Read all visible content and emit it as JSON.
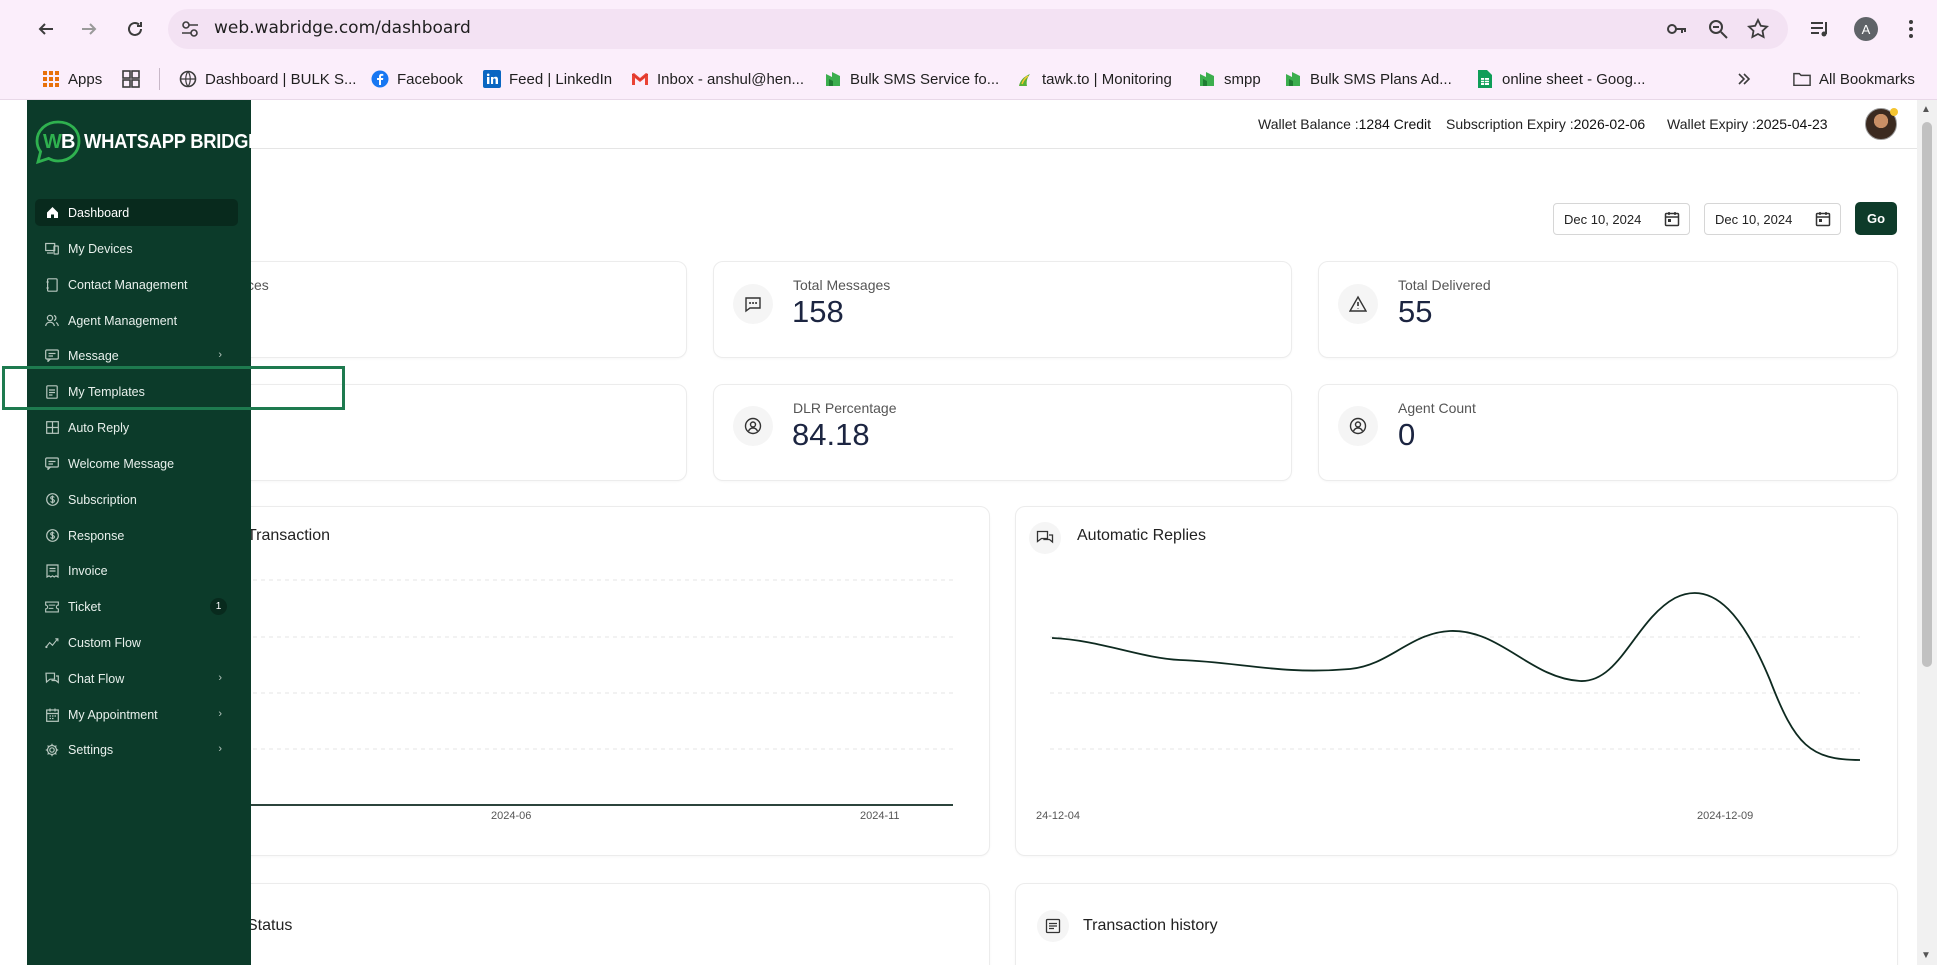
{
  "browser": {
    "url": "web.wabridge.com/dashboard",
    "profile_initial": "A",
    "bookmarks": [
      {
        "label": "Apps",
        "icon": "apps-grid-icon"
      },
      {
        "label": "Dashboard | BULK S...",
        "icon": "globe-icon"
      },
      {
        "label": "Facebook",
        "icon": "facebook-icon"
      },
      {
        "label": "Feed | LinkedIn",
        "icon": "linkedin-icon"
      },
      {
        "label": "Inbox - anshul@hen...",
        "icon": "gmail-icon"
      },
      {
        "label": "Bulk SMS Service fo...",
        "icon": "bulksms-icon"
      },
      {
        "label": "tawk.to | Monitoring",
        "icon": "tawkto-icon"
      },
      {
        "label": "smpp",
        "icon": "bulksms-icon"
      },
      {
        "label": "Bulk SMS Plans Ad...",
        "icon": "bulksms-icon"
      },
      {
        "label": "online sheet - Goog...",
        "icon": "sheets-icon"
      }
    ],
    "all_bookmarks": "All Bookmarks"
  },
  "sidebar": {
    "logo_text": "WHATSAPP BRIDGE",
    "items": [
      {
        "label": "Dashboard",
        "icon": "home-icon",
        "active": true
      },
      {
        "label": "My Devices",
        "icon": "devices-icon"
      },
      {
        "label": "Contact Management",
        "icon": "contact-book-icon"
      },
      {
        "label": "Agent Management",
        "icon": "users-icon"
      },
      {
        "label": "Message",
        "icon": "message-icon",
        "has_submenu": true
      },
      {
        "label": "My Templates",
        "icon": "template-icon"
      },
      {
        "label": "Auto Reply",
        "icon": "grid-icon"
      },
      {
        "label": "Welcome Message",
        "icon": "message-icon"
      },
      {
        "label": "Subscription",
        "icon": "dollar-icon"
      },
      {
        "label": "Response",
        "icon": "dollar-icon"
      },
      {
        "label": "Invoice",
        "icon": "invoice-icon"
      },
      {
        "label": "Ticket",
        "icon": "ticket-icon",
        "badge": "1"
      },
      {
        "label": "Custom Flow",
        "icon": "flow-icon"
      },
      {
        "label": "Chat Flow",
        "icon": "chat-icon",
        "has_submenu": true
      },
      {
        "label": "My Appointment",
        "icon": "calendar-icon",
        "has_submenu": true
      },
      {
        "label": "Settings",
        "icon": "gear-icon",
        "has_submenu": true
      }
    ]
  },
  "header": {
    "wallet_balance_label": "Wallet Balance :",
    "wallet_balance_value": "1284 Credit",
    "subscription_expiry_label": "Subscription Expiry :",
    "subscription_expiry_value": "2026-02-06",
    "wallet_expiry_label": "Wallet Expiry :",
    "wallet_expiry_value": "2025-04-23"
  },
  "filters": {
    "from_date": "Dec 10, 2024",
    "to_date": "Dec 10, 2024",
    "go_label": "Go"
  },
  "stats": [
    {
      "label": "ces",
      "value": ""
    },
    {
      "label": "Total Messages",
      "value": "158",
      "icon": "chat-bubble-icon"
    },
    {
      "label": "Total Delivered",
      "value": "55",
      "icon": "warning-icon"
    },
    {
      "label": "",
      "value": ""
    },
    {
      "label": "DLR Percentage",
      "value": "84.18",
      "icon": "user-circle-icon"
    },
    {
      "label": "Agent Count",
      "value": "0",
      "icon": "user-circle-icon"
    }
  ],
  "charts": {
    "transaction_title": "Transaction",
    "transaction_ticks": [
      "2024-06",
      "2024-11"
    ],
    "auto_replies_title": "Automatic Replies",
    "auto_replies_ticks": [
      "24-12-04",
      "2024-12-09"
    ],
    "status_title": "Status",
    "history_title": "Transaction history"
  },
  "colors": {
    "sidebar_bg": "#0c3b2a",
    "accent": "#0e3b2a",
    "highlight": "#1e7a4f"
  }
}
